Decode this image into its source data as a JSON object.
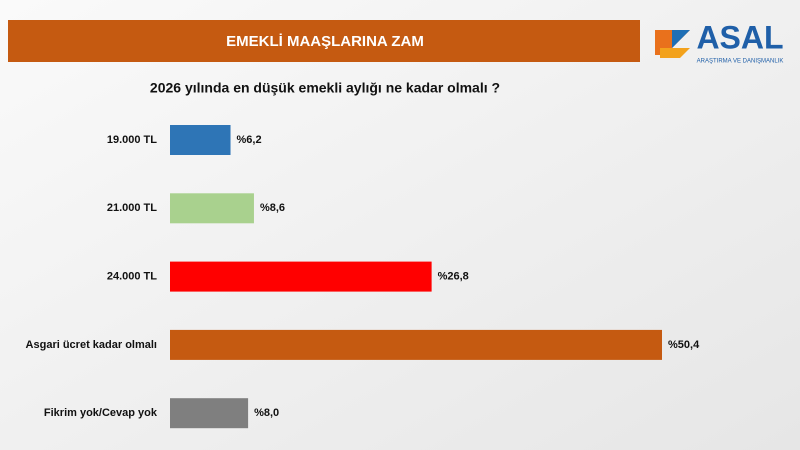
{
  "header": {
    "banner": "EMEKLİ MAAŞLARINA ZAM",
    "logo": "ASAL",
    "logo_subtitle": "ARAŞTIRMA VE DANIŞMANLIK"
  },
  "chart_data": {
    "type": "hbar",
    "title": "2026 yılında en düşük emekli aylığı ne kadar olmalı ?",
    "categories": [
      "19.000 TL",
      "21.000 TL",
      "24.000 TL",
      "Asgari ücret kadar olmalı",
      "Fikrim yok/Cevap yok"
    ],
    "values": [
      6.2,
      8.6,
      26.8,
      50.4,
      8.0
    ],
    "value_labels": [
      "%6,2",
      "%8,6",
      "%26,8",
      "%50,4",
      "%8,0"
    ],
    "colors": [
      "#2e75b6",
      "#a9d18e",
      "#ff0000",
      "#c55a11",
      "#7f7f7f"
    ]
  }
}
